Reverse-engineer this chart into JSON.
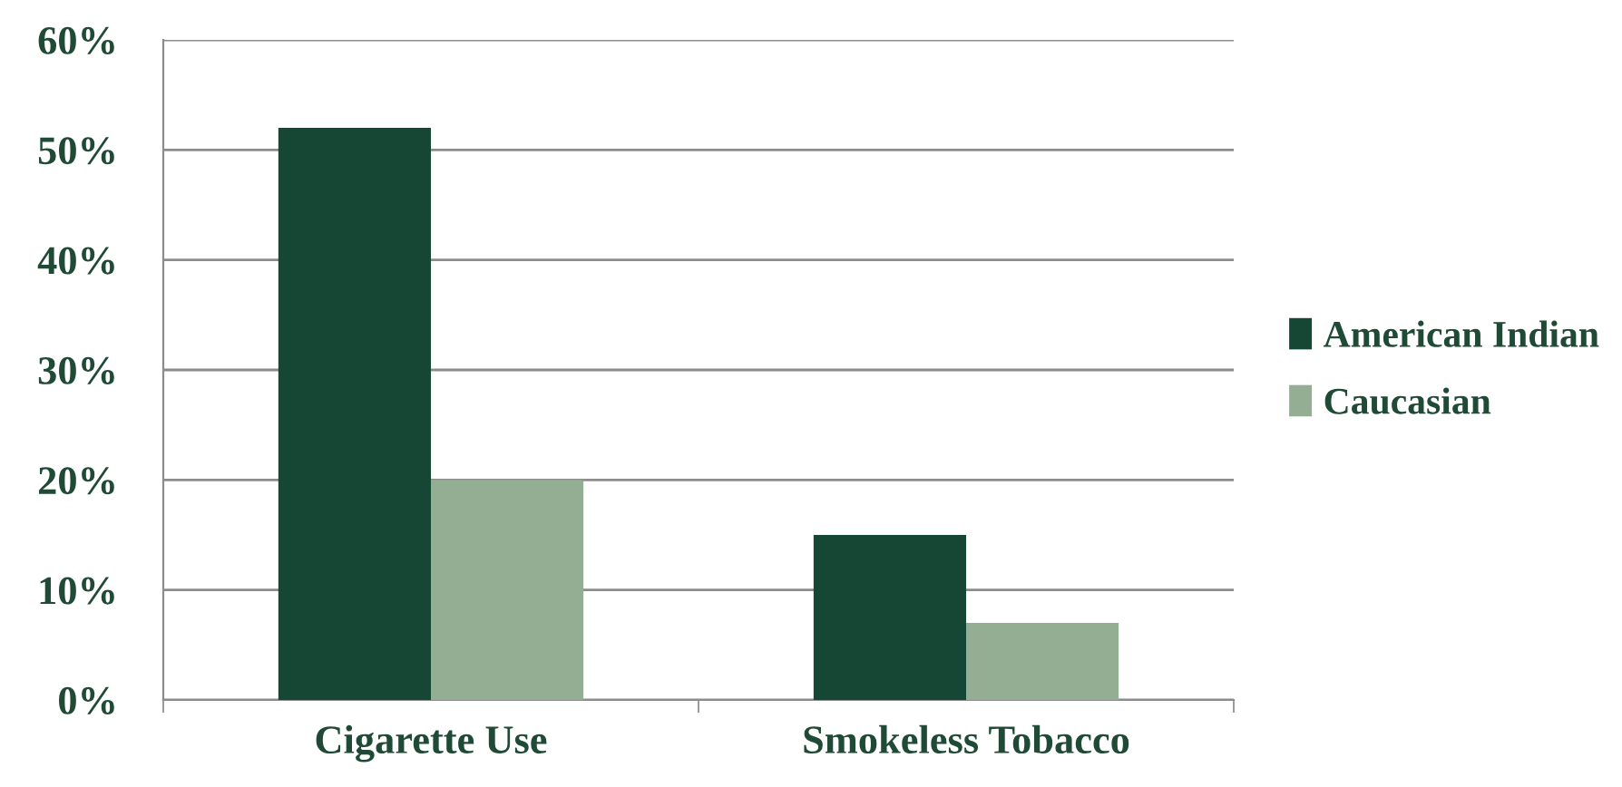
{
  "chart_data": {
    "type": "bar",
    "categories": [
      "Cigarette Use",
      "Smokeless Tobacco"
    ],
    "series": [
      {
        "name": "American Indian",
        "color": "#154734",
        "values": [
          52,
          15
        ]
      },
      {
        "name": "Caucasian",
        "color": "#93ae93",
        "values": [
          20,
          7
        ]
      }
    ],
    "ylim": [
      0,
      60
    ],
    "yticks": [
      {
        "value": 0,
        "label": "0%"
      },
      {
        "value": 10,
        "label": "10%"
      },
      {
        "value": 20,
        "label": "20%"
      },
      {
        "value": 30,
        "label": "30%"
      },
      {
        "value": 40,
        "label": "40%"
      },
      {
        "value": 50,
        "label": "50%"
      },
      {
        "value": 60,
        "label": "60%"
      }
    ],
    "grid": "y",
    "legend": "right"
  }
}
